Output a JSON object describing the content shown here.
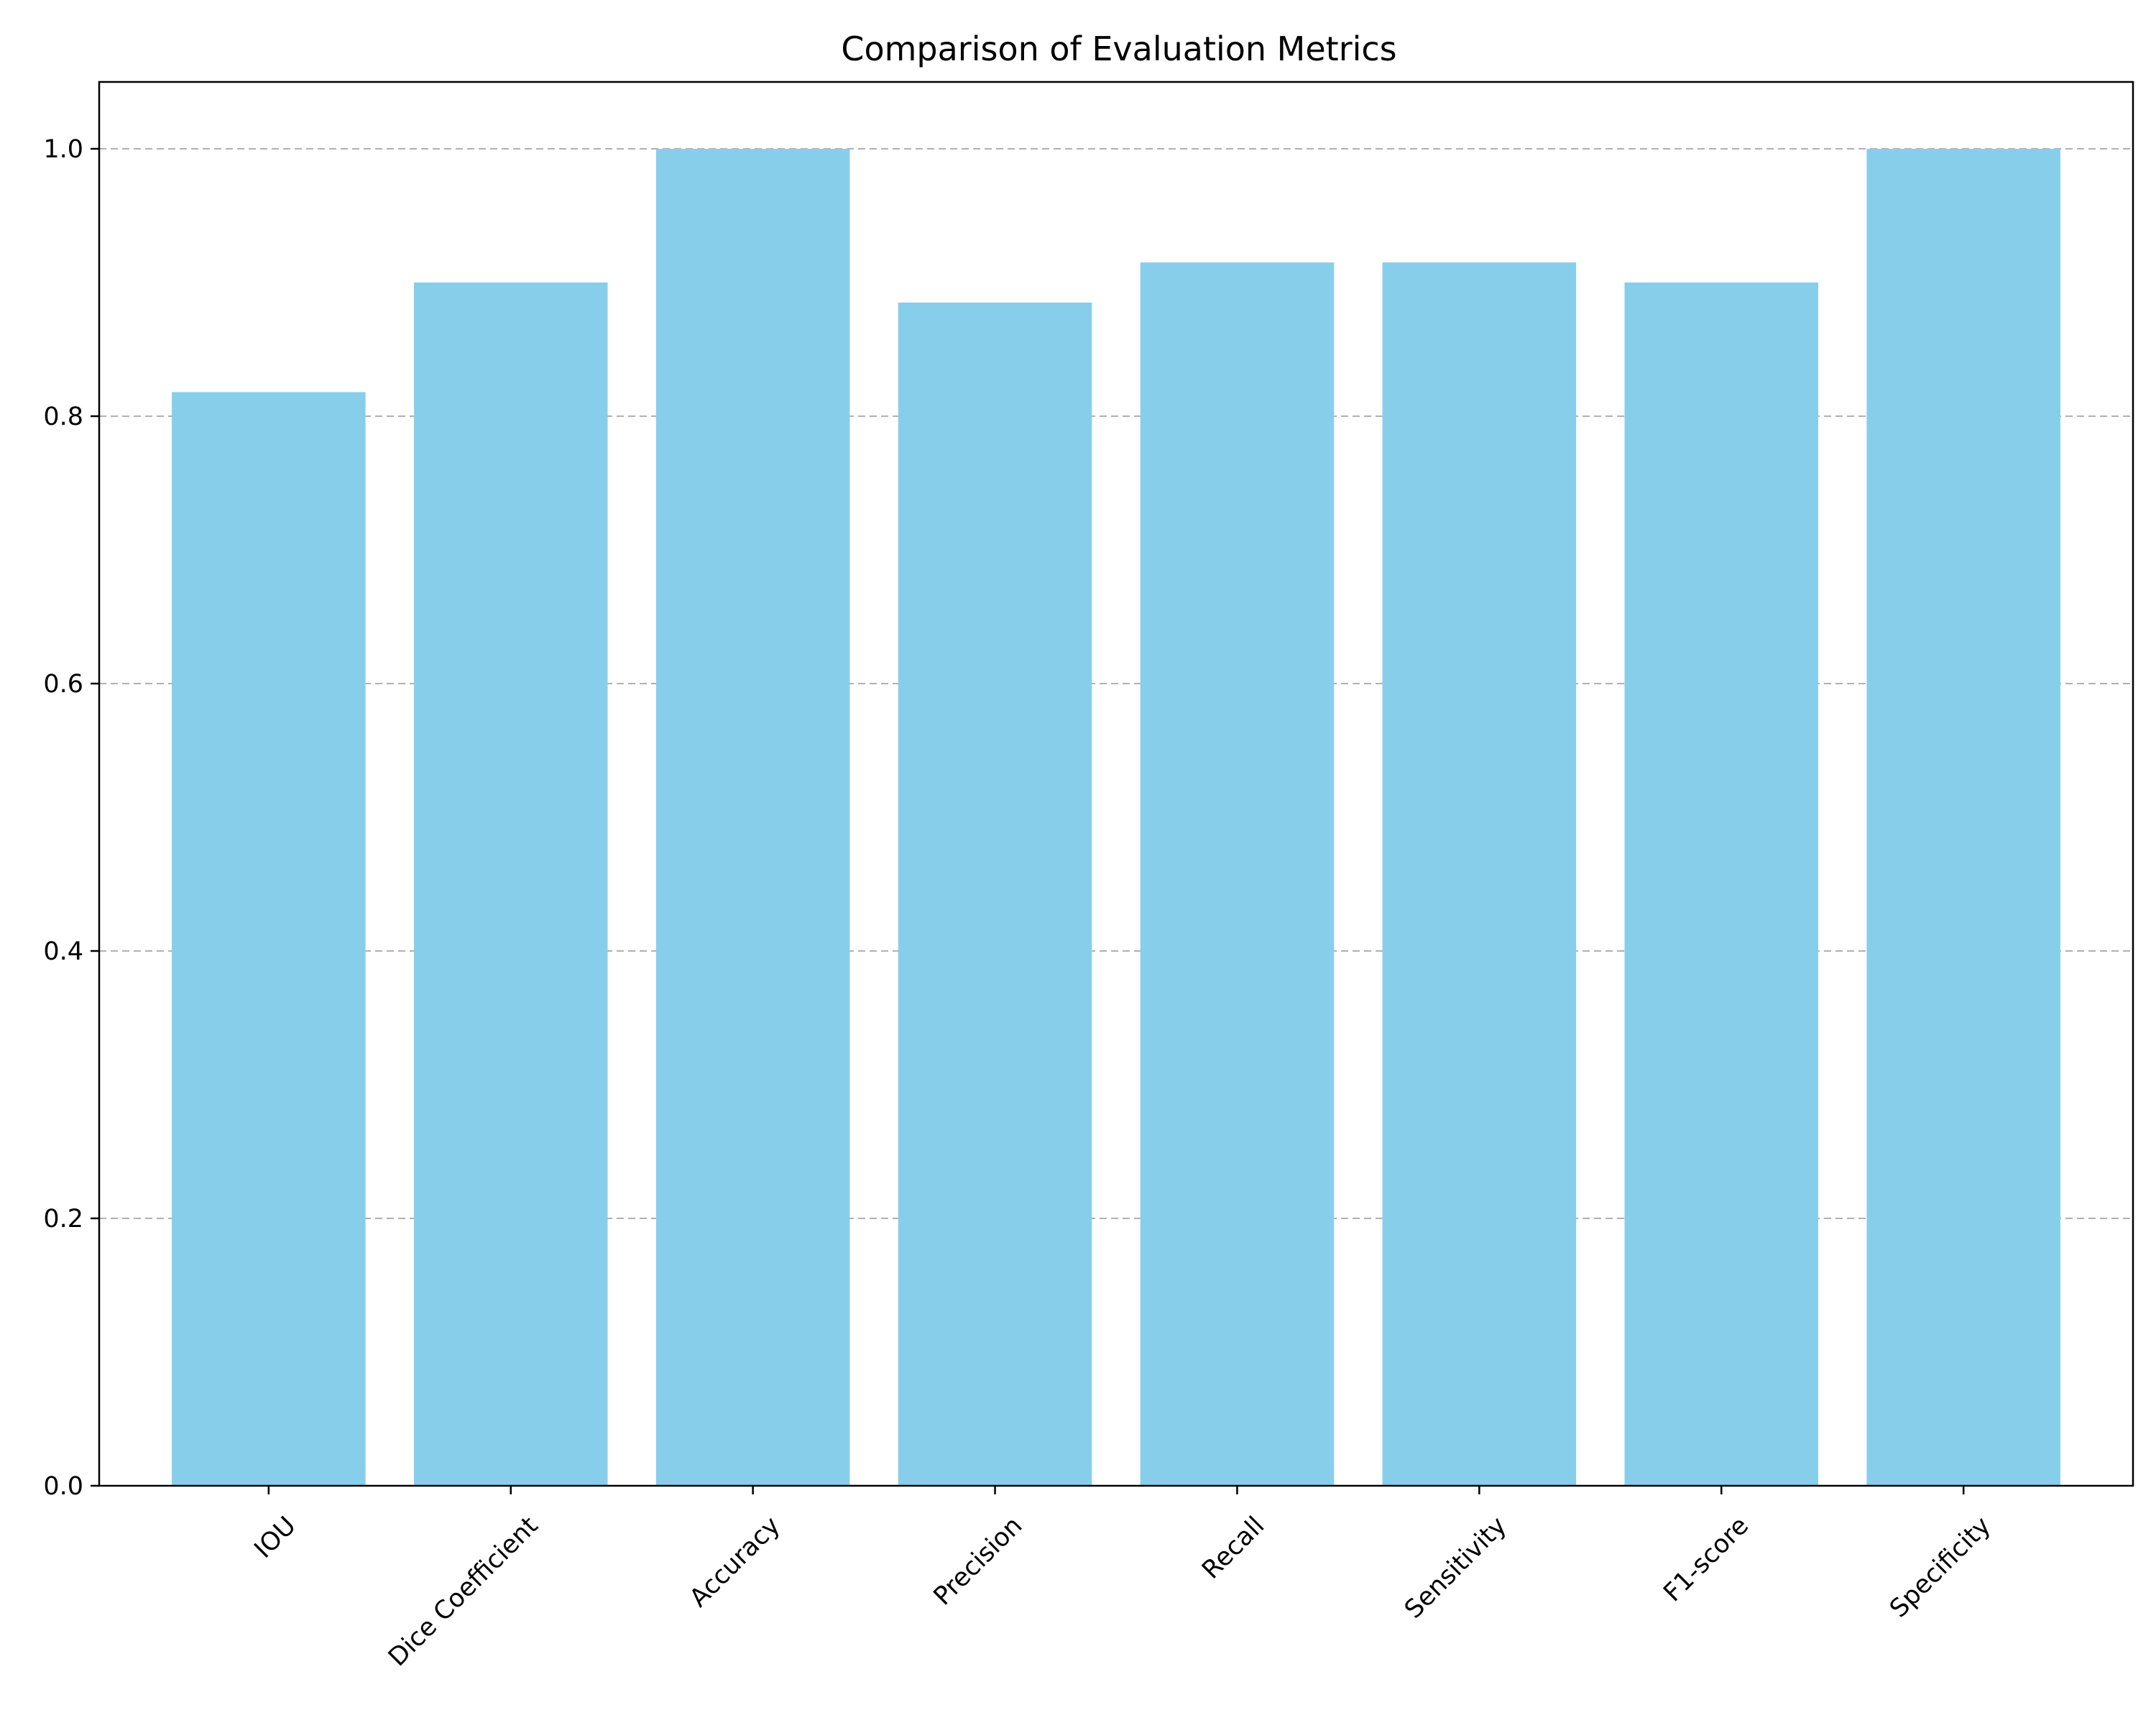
{
  "chart_data": {
    "type": "bar",
    "title": "Comparison of Evaluation Metrics",
    "xlabel": "",
    "ylabel": "",
    "categories": [
      "IOU",
      "Dice Coefficient",
      "Accuracy",
      "Precision",
      "Recall",
      "Sensitivity",
      "F1-score",
      "Specificity"
    ],
    "values": [
      0.818,
      0.9,
      1.0,
      0.885,
      0.915,
      0.915,
      0.9,
      1.0
    ],
    "ylim": [
      0,
      1.05
    ],
    "yticks": [
      "0.0",
      "0.2",
      "0.4",
      "0.6",
      "0.8",
      "1.0"
    ],
    "grid": "y-dashed",
    "bar_color": "#87CEEB",
    "grid_color": "#b0b0b0",
    "x_label_rotation_deg": 45
  }
}
